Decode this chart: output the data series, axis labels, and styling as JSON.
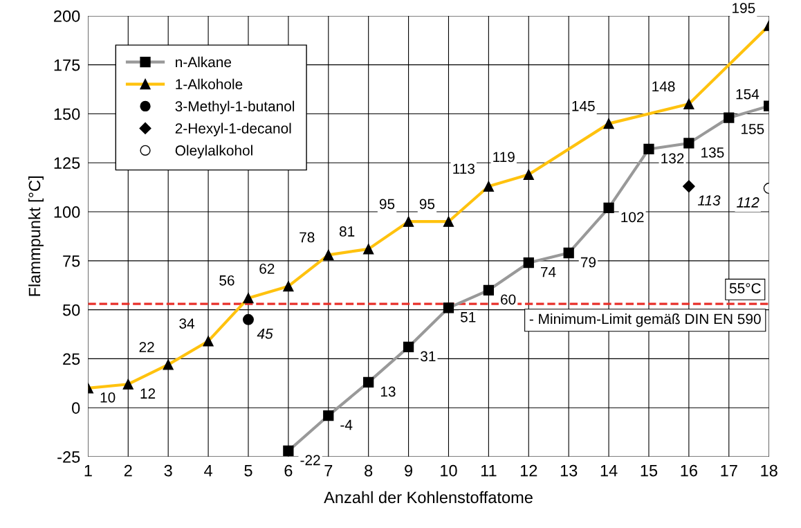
{
  "chart_data": {
    "type": "line",
    "xlabel": "Anzahl der Kohlenstoffatome",
    "ylabel": "Flammpunkt [°C]",
    "xlim": [
      1,
      18
    ],
    "xticks": [
      1,
      2,
      3,
      4,
      5,
      6,
      7,
      8,
      9,
      10,
      11,
      12,
      13,
      14,
      15,
      16,
      17,
      18
    ],
    "ylim": [
      -25,
      200
    ],
    "yticks": [
      -25,
      0,
      25,
      50,
      75,
      100,
      125,
      150,
      175,
      200
    ],
    "grid": true,
    "legend": "top left",
    "series": [
      {
        "name": "n-Alkane",
        "color": "#999999",
        "marker": "square",
        "x": [
          6,
          7,
          8,
          9,
          10,
          11,
          12,
          13,
          14,
          15,
          16,
          17,
          18
        ],
        "values": [
          -22,
          -4,
          13,
          31,
          51,
          60,
          74,
          79,
          102,
          132,
          135,
          148,
          154
        ],
        "value_labels": [
          "-22",
          "-4",
          "13",
          "31",
          "51",
          "60",
          "74",
          "79",
          "102",
          "132",
          "135",
          null,
          "154"
        ]
      },
      {
        "name": "1-Alkohole",
        "color": "#ffc20e",
        "marker": "triangle",
        "x": [
          1,
          2,
          3,
          4,
          5,
          6,
          7,
          8,
          9,
          10,
          11,
          12,
          14,
          16,
          18
        ],
        "values": [
          10,
          12,
          22,
          34,
          56,
          62,
          78,
          81,
          95,
          95,
          113,
          119,
          145,
          155,
          195
        ],
        "value_labels": [
          "10",
          "12",
          "22",
          "34",
          "56",
          "62",
          "78",
          "81",
          "95",
          "95",
          "113",
          "119",
          "145",
          null,
          "195"
        ]
      },
      {
        "name": "3-Methyl-1-butanol",
        "type": "scatter",
        "color": "#000000",
        "marker": "circle",
        "x": [
          5
        ],
        "values": [
          45
        ],
        "value_labels": [
          "45"
        ]
      },
      {
        "name": "2-Hexyl-1-decanol",
        "type": "scatter",
        "color": "#000000",
        "marker": "diamond",
        "x": [
          16
        ],
        "values": [
          113
        ],
        "value_labels": [
          "113"
        ]
      },
      {
        "name": "Oleylalkohol",
        "type": "scatter",
        "color": "#ffffff",
        "marker": "circle",
        "x": [
          18
        ],
        "values": [
          112
        ],
        "value_labels": [
          "112"
        ]
      }
    ],
    "ref_lines": [
      {
        "axis": "y",
        "value": 53,
        "label": "55°C",
        "color": "#e8302a",
        "line_style": "dashed"
      }
    ],
    "annotations": [
      {
        "text": "148",
        "x": 16,
        "y": 155
      },
      {
        "text": "155",
        "x": 17,
        "y": 148
      },
      "- Minimum-Limit gemäß DIN EN 590"
    ]
  }
}
